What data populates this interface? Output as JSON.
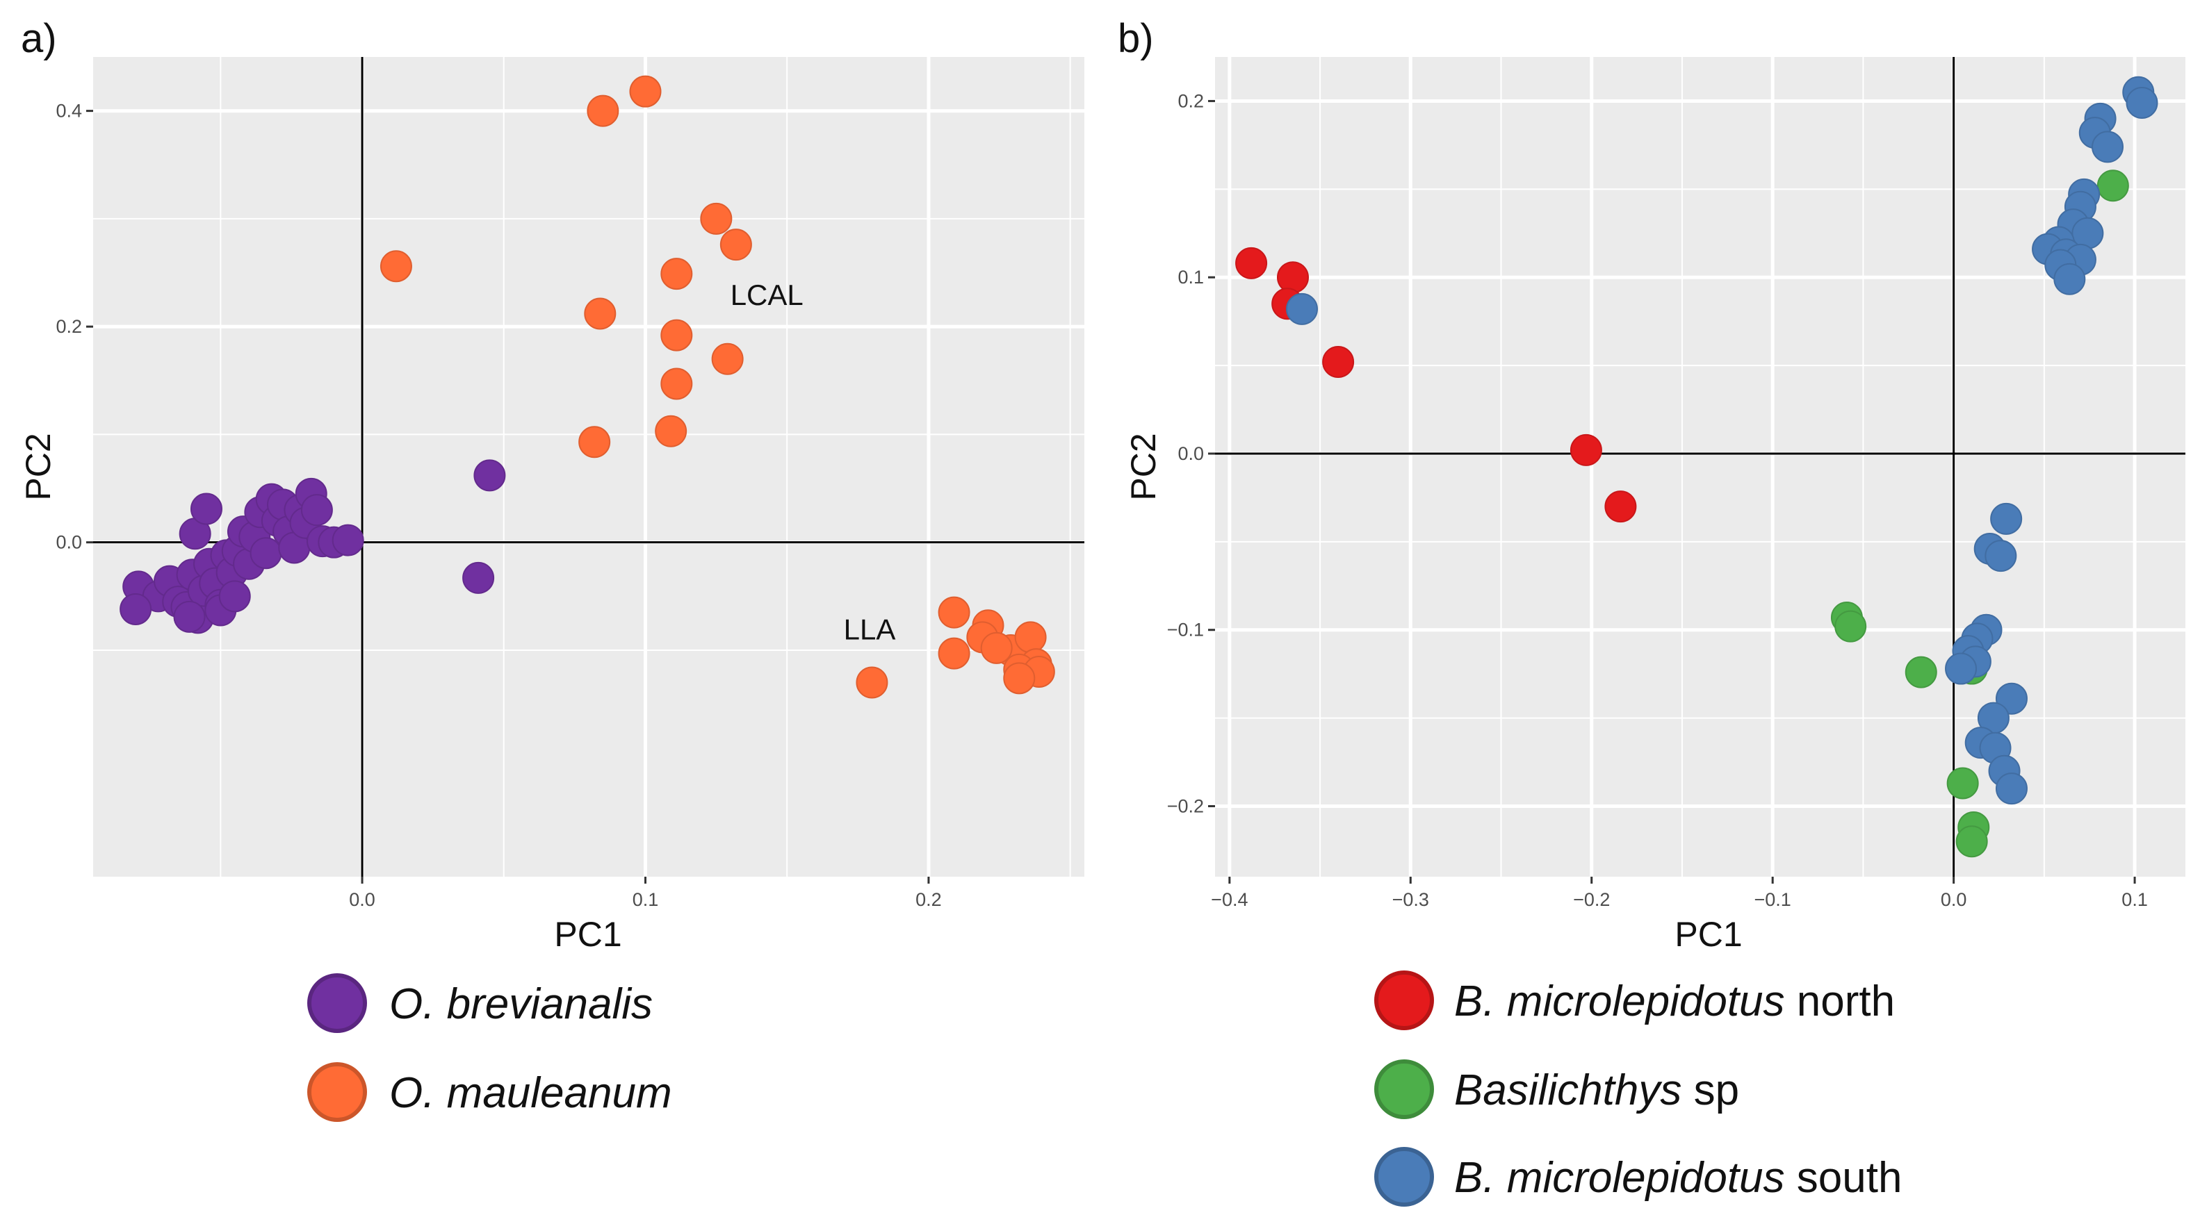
{
  "chart_data": [
    {
      "panel": "a)",
      "type": "scatter",
      "xlabel": "PC1",
      "ylabel": "PC2",
      "xlim": [
        -0.095,
        0.255
      ],
      "ylim": [
        -0.31,
        0.45
      ],
      "xticks": [
        0.0,
        0.1,
        0.2
      ],
      "xtick_labels": [
        "0.0",
        "0.1",
        "0.2"
      ],
      "yticks": [
        0.0,
        0.2,
        0.4
      ],
      "ytick_labels": [
        "0.0",
        "0.2",
        "0.4"
      ],
      "grid": true,
      "zero_lines": true,
      "annotations": [
        {
          "text": "LCAL",
          "x": 0.13,
          "y": 0.22
        },
        {
          "text": "LLA",
          "x": 0.17,
          "y": -0.09
        }
      ],
      "legend": [
        {
          "italic": "O. brevianalis",
          "suffix": "",
          "color": "#7030A0"
        },
        {
          "italic": "O. mauleanum",
          "suffix": "",
          "color": "#FF6B35"
        }
      ],
      "series": [
        {
          "color": "#7030A0",
          "points": [
            [
              -0.079,
              -0.041
            ],
            [
              -0.072,
              -0.05
            ],
            [
              -0.068,
              -0.036
            ],
            [
              -0.065,
              -0.055
            ],
            [
              -0.062,
              -0.06
            ],
            [
              -0.06,
              -0.03
            ],
            [
              -0.058,
              -0.07
            ],
            [
              -0.056,
              -0.045
            ],
            [
              -0.054,
              -0.02
            ],
            [
              -0.052,
              -0.038
            ],
            [
              -0.05,
              -0.058
            ],
            [
              -0.05,
              -0.063
            ],
            [
              -0.048,
              -0.012
            ],
            [
              -0.046,
              -0.028
            ],
            [
              -0.045,
              -0.05
            ],
            [
              -0.044,
              -0.008
            ],
            [
              -0.042,
              0.01
            ],
            [
              -0.04,
              -0.02
            ],
            [
              -0.038,
              0.005
            ],
            [
              -0.036,
              0.028
            ],
            [
              -0.034,
              -0.01
            ],
            [
              -0.032,
              0.04
            ],
            [
              -0.03,
              0.02
            ],
            [
              -0.028,
              0.035
            ],
            [
              -0.026,
              0.01
            ],
            [
              -0.024,
              -0.005
            ],
            [
              -0.022,
              0.03
            ],
            [
              -0.02,
              0.018
            ],
            [
              -0.018,
              0.045
            ],
            [
              -0.016,
              0.03
            ],
            [
              -0.014,
              0.001
            ],
            [
              -0.01,
              0.0
            ],
            [
              -0.005,
              0.002
            ],
            [
              -0.059,
              0.008
            ],
            [
              -0.055,
              0.031
            ],
            [
              -0.08,
              -0.062
            ],
            [
              -0.061,
              -0.069
            ],
            [
              0.045,
              0.062
            ],
            [
              0.041,
              -0.033
            ]
          ]
        },
        {
          "color": "#FF6B35",
          "points": [
            [
              0.1,
              0.418
            ],
            [
              0.085,
              0.4
            ],
            [
              0.125,
              0.3
            ],
            [
              0.132,
              0.276
            ],
            [
              0.012,
              0.256
            ],
            [
              0.111,
              0.249
            ],
            [
              0.084,
              0.212
            ],
            [
              0.111,
              0.192
            ],
            [
              0.129,
              0.17
            ],
            [
              0.111,
              0.147
            ],
            [
              0.109,
              0.103
            ],
            [
              0.082,
              0.093
            ],
            [
              0.209,
              -0.065
            ],
            [
              0.221,
              -0.077
            ],
            [
              0.229,
              -0.1
            ],
            [
              0.219,
              -0.088
            ],
            [
              0.236,
              -0.088
            ],
            [
              0.209,
              -0.103
            ],
            [
              0.224,
              -0.098
            ],
            [
              0.238,
              -0.113
            ],
            [
              0.232,
              -0.118
            ],
            [
              0.239,
              -0.12
            ],
            [
              0.232,
              -0.126
            ],
            [
              0.18,
              -0.13
            ]
          ]
        }
      ]
    },
    {
      "panel": "b)",
      "type": "scatter",
      "xlabel": "PC1",
      "ylabel": "PC2",
      "xlim": [
        -0.408,
        0.128
      ],
      "ylim": [
        -0.24,
        0.225
      ],
      "xticks": [
        -0.4,
        -0.3,
        -0.2,
        -0.1,
        0.0,
        0.1
      ],
      "xtick_labels": [
        "−0.4",
        "−0.3",
        "−0.2",
        "−0.1",
        "0.0",
        "0.1"
      ],
      "yticks": [
        -0.2,
        -0.1,
        0.0,
        0.1,
        0.2
      ],
      "ytick_labels": [
        "−0.2",
        "−0.1",
        "0.0",
        "0.1",
        "0.2"
      ],
      "grid": true,
      "zero_lines": true,
      "legend": [
        {
          "italic": "B. microlepidotus",
          "suffix": " north",
          "color": "#E41A1C"
        },
        {
          "italic": "Basilichthys",
          "suffix": " sp",
          "color": "#4DAF4A"
        },
        {
          "italic": "B. microlepidotus",
          "suffix": " south",
          "color": "#4A7CB8"
        }
      ],
      "series": [
        {
          "color": "#E41A1C",
          "points": [
            [
              -0.388,
              0.108
            ],
            [
              -0.365,
              0.1
            ],
            [
              -0.368,
              0.085
            ],
            [
              -0.34,
              0.052
            ],
            [
              -0.203,
              0.002
            ],
            [
              -0.184,
              -0.03
            ]
          ]
        },
        {
          "color": "#4DAF4A",
          "points": [
            [
              0.088,
              0.152
            ],
            [
              -0.059,
              -0.093
            ],
            [
              -0.057,
              -0.098
            ],
            [
              -0.018,
              -0.124
            ],
            [
              0.005,
              -0.187
            ],
            [
              0.01,
              -0.122
            ],
            [
              0.011,
              -0.212
            ],
            [
              0.01,
              -0.22
            ]
          ]
        },
        {
          "color": "#4A7CB8",
          "points": [
            [
              -0.36,
              0.082
            ],
            [
              0.102,
              0.205
            ],
            [
              0.104,
              0.199
            ],
            [
              0.081,
              0.19
            ],
            [
              0.078,
              0.182
            ],
            [
              0.085,
              0.174
            ],
            [
              0.072,
              0.147
            ],
            [
              0.07,
              0.14
            ],
            [
              0.066,
              0.13
            ],
            [
              0.074,
              0.125
            ],
            [
              0.058,
              0.12
            ],
            [
              0.052,
              0.116
            ],
            [
              0.062,
              0.113
            ],
            [
              0.07,
              0.11
            ],
            [
              0.059,
              0.107
            ],
            [
              0.064,
              0.099
            ],
            [
              0.029,
              -0.037
            ],
            [
              0.02,
              -0.054
            ],
            [
              0.026,
              -0.058
            ],
            [
              0.018,
              -0.1
            ],
            [
              0.013,
              -0.105
            ],
            [
              0.008,
              -0.112
            ],
            [
              0.012,
              -0.118
            ],
            [
              0.004,
              -0.122
            ],
            [
              0.032,
              -0.139
            ],
            [
              0.022,
              -0.15
            ],
            [
              0.015,
              -0.164
            ],
            [
              0.023,
              -0.167
            ],
            [
              0.028,
              -0.18
            ],
            [
              0.032,
              -0.19
            ]
          ]
        }
      ]
    }
  ]
}
